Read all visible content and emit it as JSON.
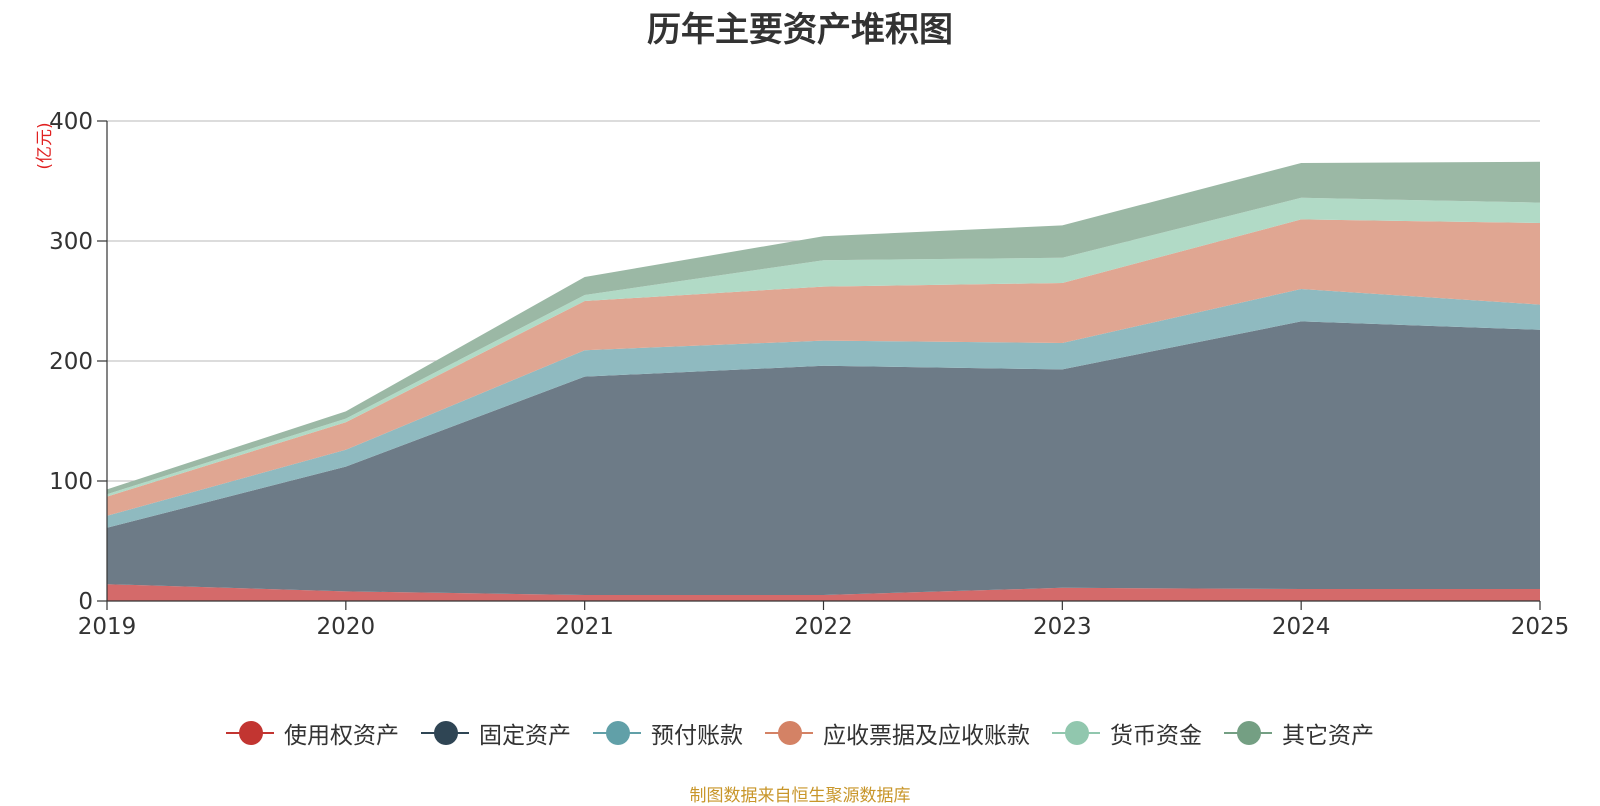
{
  "chart_data": {
    "type": "area",
    "stacked": true,
    "title": "历年主要资产堆积图",
    "ylabel": "(亿元)",
    "xlabel": "",
    "categories": [
      "2019",
      "2020",
      "2021",
      "2022",
      "2023",
      "2024",
      "2025"
    ],
    "ylim": [
      0,
      400
    ],
    "yticks": [
      0,
      100,
      200,
      300,
      400
    ],
    "grid": true,
    "legend_position": "bottom",
    "series": [
      {
        "name": "使用权资产",
        "color": "#c23531",
        "fill": "#d46a6a",
        "values": [
          14,
          8,
          5,
          5,
          11,
          10,
          10
        ]
      },
      {
        "name": "固定资产",
        "color": "#2f4554",
        "fill": "#6d7b87",
        "values": [
          47,
          104,
          182,
          191,
          182,
          223,
          216
        ]
      },
      {
        "name": "预付账款",
        "color": "#61a0a8",
        "fill": "#8fbac0",
        "values": [
          10,
          14,
          22,
          21,
          22,
          27,
          21
        ]
      },
      {
        "name": "应收票据及应收账款",
        "color": "#d48265",
        "fill": "#e0a692",
        "values": [
          16,
          23,
          41,
          45,
          50,
          58,
          68
        ]
      },
      {
        "name": "货币资金",
        "color": "#91c7ae",
        "fill": "#b1dac6",
        "values": [
          2,
          3,
          5,
          22,
          21,
          18,
          17
        ]
      },
      {
        "name": "其它资产",
        "color": "#749f83",
        "fill": "#9bb8a5",
        "values": [
          4,
          6,
          15,
          20,
          27,
          29,
          34
        ]
      }
    ]
  },
  "source_text": "制图数据来自恒生聚源数据库"
}
